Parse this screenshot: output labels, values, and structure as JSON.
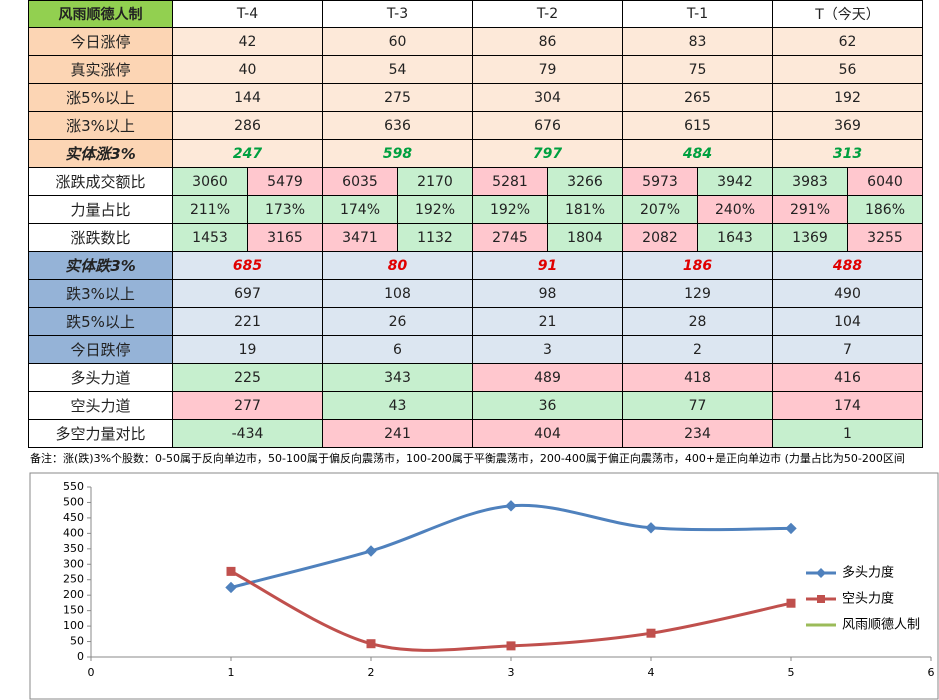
{
  "table": {
    "header": [
      "风雨顺德人制",
      "T-4",
      "T-3",
      "T-2",
      "T-1",
      "T（今天）"
    ],
    "rows": [
      {
        "label": "今日涨停",
        "cells": [
          42,
          60,
          86,
          83,
          62
        ]
      },
      {
        "label": "真实涨停",
        "cells": [
          40,
          54,
          79,
          75,
          56
        ]
      },
      {
        "label": "涨5%以上",
        "cells": [
          144,
          275,
          304,
          265,
          192
        ]
      },
      {
        "label": "涨3%以上",
        "cells": [
          286,
          636,
          676,
          615,
          369
        ]
      },
      {
        "label": "实体涨3%",
        "cells": [
          247,
          598,
          797,
          484,
          313
        ]
      },
      {
        "label": "涨跌成交额比",
        "cells": [
          [
            3060,
            5479
          ],
          [
            6035,
            2170
          ],
          [
            5281,
            3266
          ],
          [
            5973,
            3942
          ],
          [
            3983,
            6040
          ]
        ]
      },
      {
        "label": "力量占比",
        "cells": [
          [
            "211%",
            "173%"
          ],
          [
            "174%",
            "192%"
          ],
          [
            "192%",
            "181%"
          ],
          [
            "207%",
            "240%"
          ],
          [
            "291%",
            "186%"
          ]
        ]
      },
      {
        "label": "涨跌数比",
        "cells": [
          [
            1453,
            3165
          ],
          [
            3471,
            1132
          ],
          [
            2745,
            1804
          ],
          [
            2082,
            1643
          ],
          [
            1369,
            3255
          ]
        ]
      },
      {
        "label": "实体跌3%",
        "cells": [
          685,
          80,
          91,
          186,
          488
        ]
      },
      {
        "label": "跌3%以上",
        "cells": [
          697,
          108,
          98,
          129,
          490
        ]
      },
      {
        "label": "跌5%以上",
        "cells": [
          221,
          26,
          21,
          28,
          104
        ]
      },
      {
        "label": "今日跌停",
        "cells": [
          19,
          6,
          3,
          2,
          7
        ]
      },
      {
        "label": "多头力道",
        "cells": [
          225,
          343,
          489,
          418,
          416
        ]
      },
      {
        "label": "空头力道",
        "cells": [
          277,
          43,
          36,
          77,
          174
        ]
      },
      {
        "label": "多空力量对比",
        "cells": [
          -434,
          241,
          404,
          234,
          1
        ]
      }
    ],
    "note": "备注：涨(跌)3%个股数：0-50属于反向单边市，50-100属于偏反向震荡市，100-200属于平衡震荡市，200-400属于偏正向震荡市，400+是正向单边市 (力量占比为50-200区间"
  },
  "chart_data": {
    "type": "line",
    "x": [
      1,
      2,
      3,
      4,
      5
    ],
    "series": [
      {
        "name": "多头力度",
        "color": "#4f81bd",
        "values": [
          225,
          343,
          489,
          418,
          416
        ]
      },
      {
        "name": "空头力度",
        "color": "#c0504d",
        "values": [
          277,
          43,
          36,
          77,
          174
        ]
      },
      {
        "name": "风雨顺德人制",
        "color": "#9bbb59",
        "values": [
          null,
          null,
          null,
          null,
          null
        ]
      }
    ],
    "xlim": [
      0,
      6
    ],
    "xticks": [
      0,
      1,
      2,
      3,
      4,
      5,
      6
    ],
    "ylim": [
      0,
      550
    ],
    "yticks": [
      0,
      50,
      100,
      150,
      200,
      250,
      300,
      350,
      400,
      450,
      500,
      550
    ],
    "legend": "right",
    "smooth": true
  }
}
